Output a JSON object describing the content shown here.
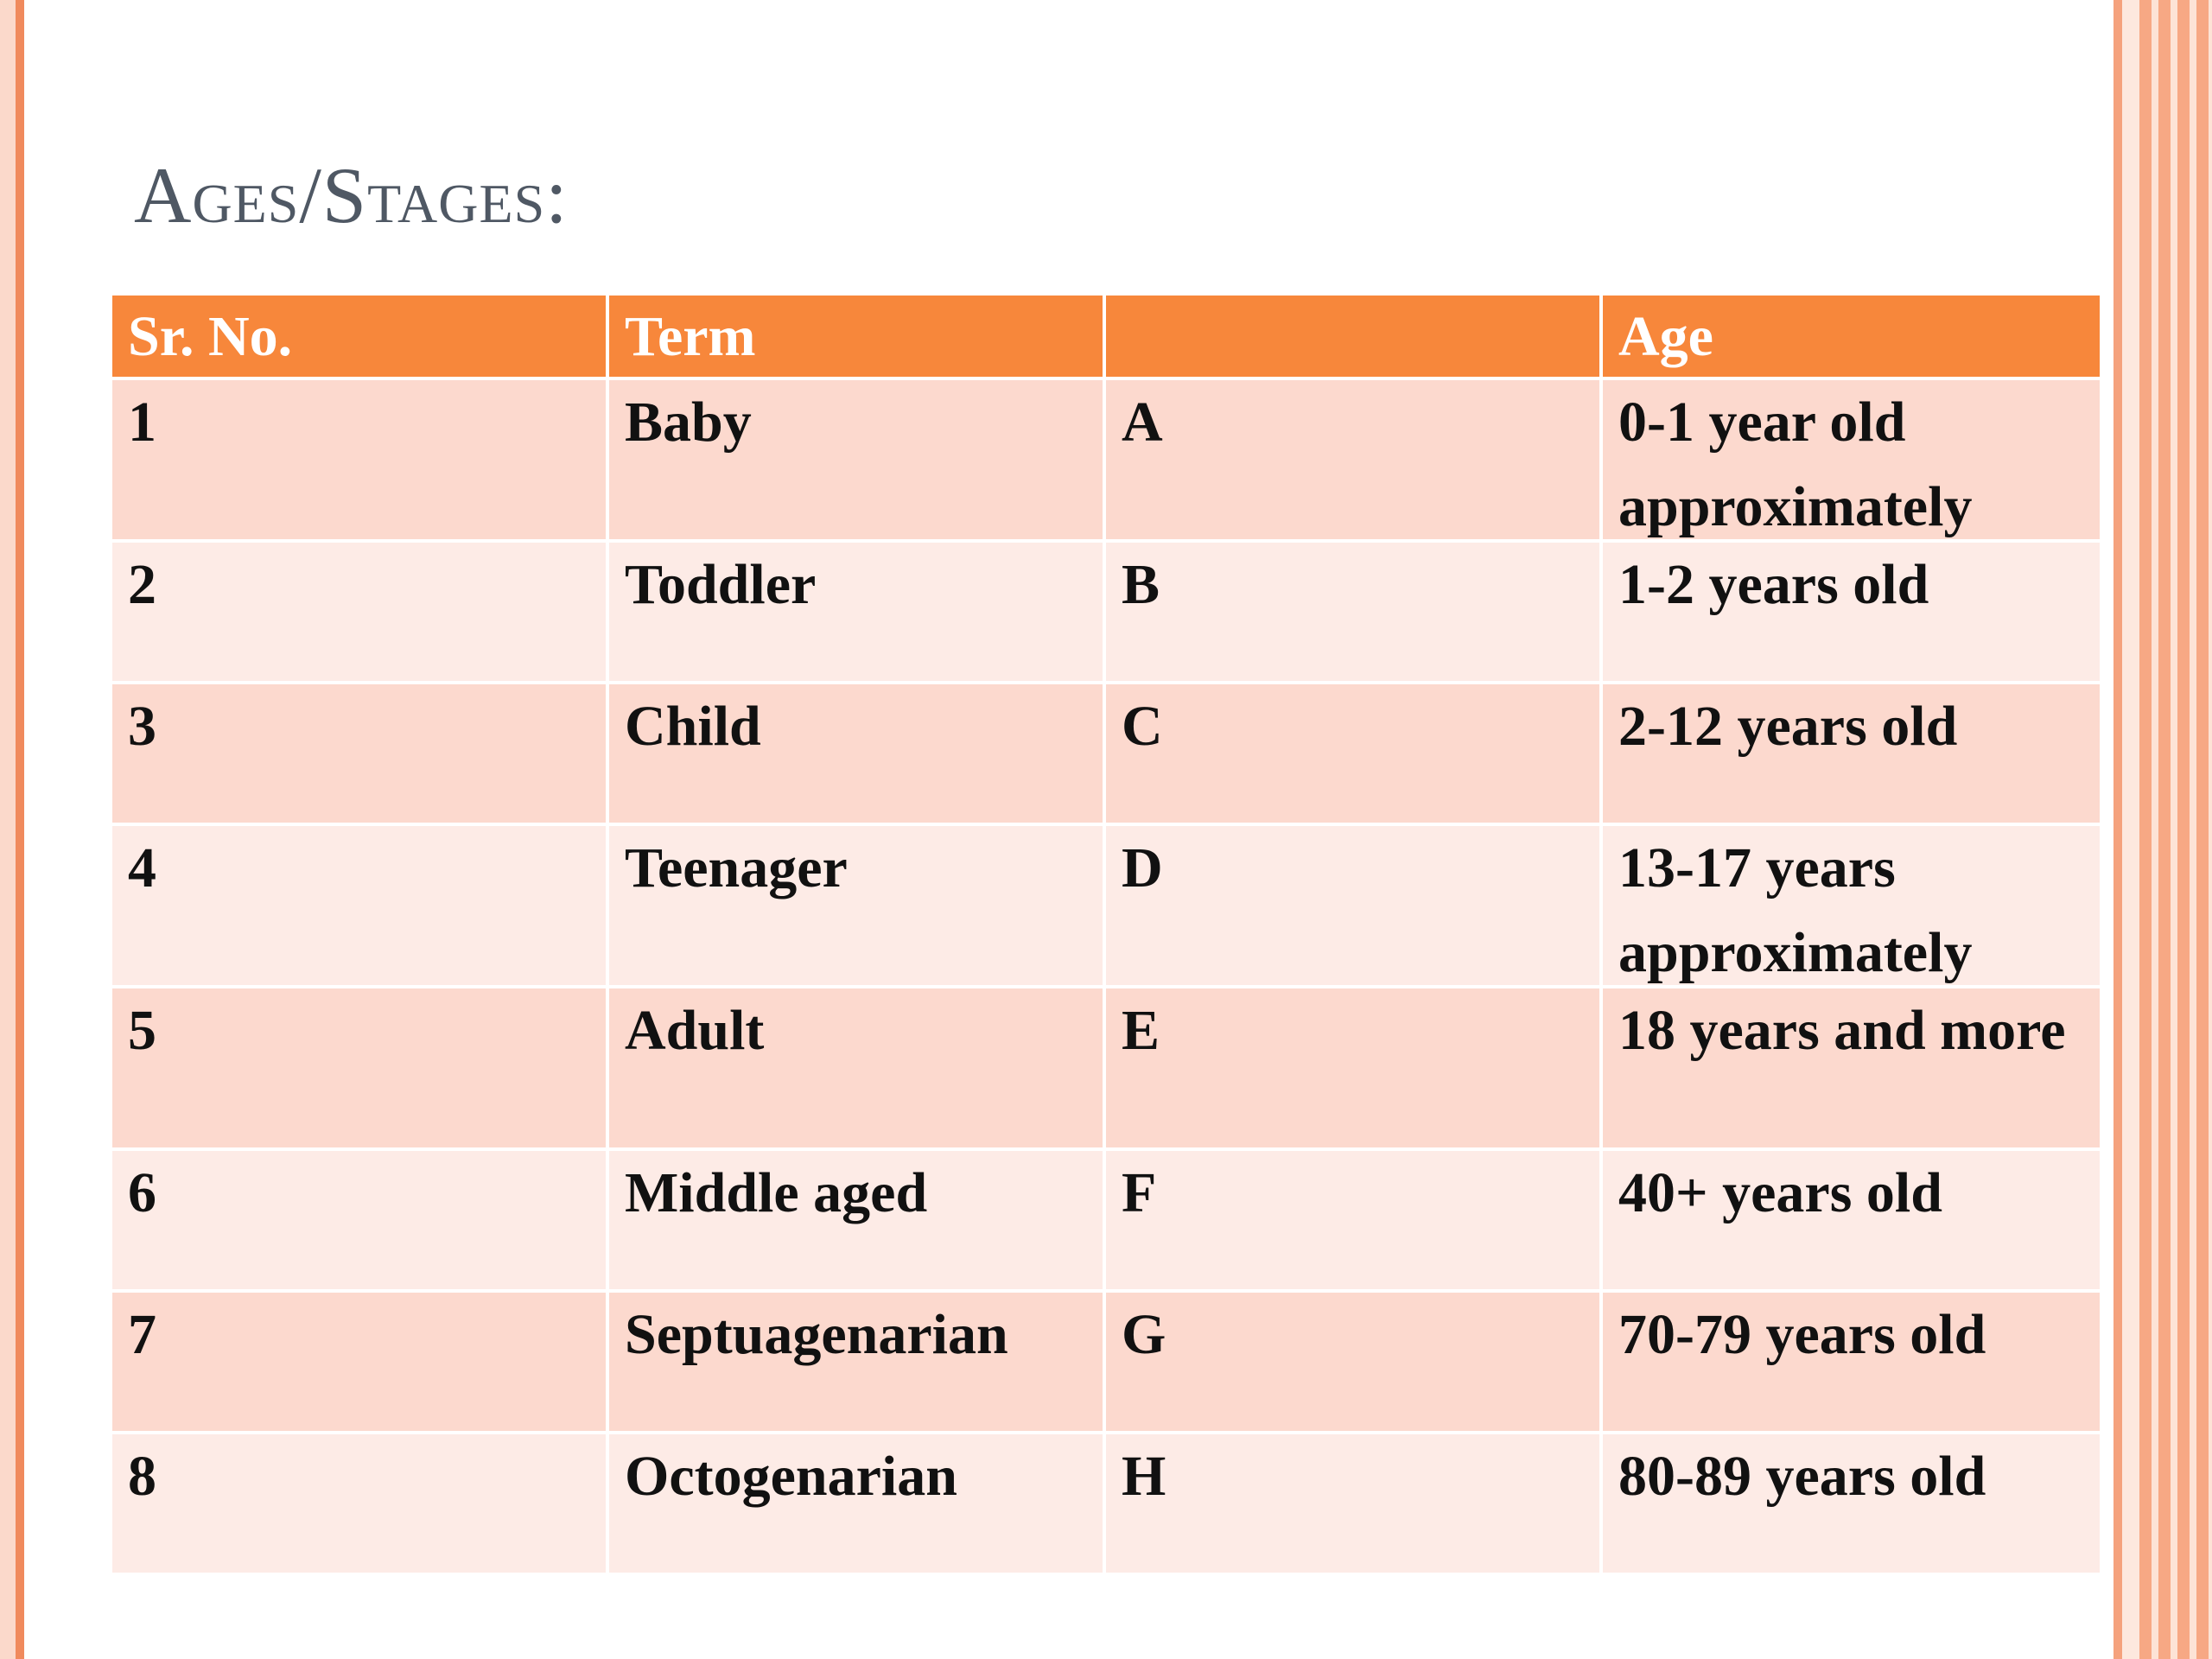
{
  "slide": {
    "title": "Ages/Stages:"
  },
  "table": {
    "headers": [
      "Sr. No.",
      "Term",
      "",
      "Age"
    ],
    "rows": [
      [
        "1",
        "Baby",
        "A",
        "0-1 year old approximately"
      ],
      [
        "2",
        "Toddler",
        "B",
        "1-2 years old"
      ],
      [
        "3",
        "Child",
        "C",
        "2-12 years old"
      ],
      [
        "4",
        "Teenager",
        "D",
        "13-17 years approximately"
      ],
      [
        "5",
        "Adult",
        "E",
        "18 years and more"
      ],
      [
        "6",
        "Middle aged",
        "F",
        "40+ years old"
      ],
      [
        "7",
        "Septuagenarian",
        "G",
        "70-79 years old"
      ],
      [
        "8",
        "Octogenarian",
        "H",
        "80-89 years old"
      ]
    ]
  },
  "colors": {
    "header": "#f7873b",
    "row_dark": "#fcd9ce",
    "row_light": "#fdebe6",
    "title": "#4f5864",
    "accent": "#f08a5d"
  }
}
